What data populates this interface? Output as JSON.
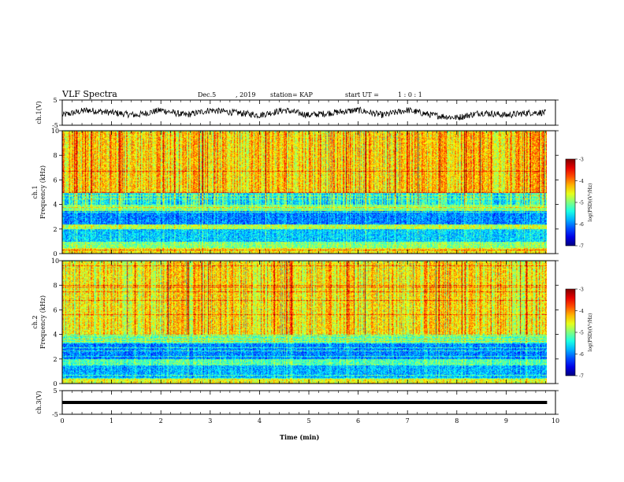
{
  "header": {
    "title": "VLF Spectra",
    "date": "Dec.5",
    "year": ", 2019",
    "station_label": "station= KAP",
    "start_label": "start  UT  =",
    "start_value": "1 : 0  : 1"
  },
  "chart_data": [
    {
      "type": "line",
      "panel": "ch1-waveform",
      "ylabel": "ch.1(V)",
      "ylim": [
        -5,
        5
      ],
      "yticks": [
        "5",
        "-5"
      ],
      "xlim": [
        0,
        10
      ],
      "description_series_color": "#000000",
      "x_min": [
        0,
        0.5,
        1,
        1.5,
        2,
        2.5,
        3,
        3.5,
        4,
        4.5,
        5,
        5.5,
        6,
        6.5,
        7,
        7.5,
        8,
        8.5,
        9,
        9.5,
        9.8
      ],
      "y_v": [
        -1,
        1,
        0,
        -1,
        1,
        -1,
        1,
        0,
        -1,
        1,
        -1,
        0,
        1,
        -1,
        1,
        -1,
        -2,
        0,
        -1,
        0,
        0
      ]
    },
    {
      "type": "heatmap",
      "panel": "ch1-spectrogram",
      "ylabel_top": "ch.1",
      "ylabel": "Frequency  (kHz)",
      "ylim": [
        0,
        10
      ],
      "yticks": [
        "0",
        "2",
        "4",
        "6",
        "8",
        "10"
      ],
      "xlim": [
        0,
        9.83
      ],
      "colorbar": {
        "label": "log(PSD)(V²/Hz)",
        "range": [
          -7,
          -3
        ],
        "ticks": [
          "-3",
          "-4",
          "-5",
          "-6",
          "-7"
        ]
      },
      "bands_khz": [
        {
          "from": 0.0,
          "to": 0.5,
          "level": -4.5
        },
        {
          "from": 0.5,
          "to": 1.0,
          "level": -5.0
        },
        {
          "from": 1.0,
          "to": 2.0,
          "level": -5.7
        },
        {
          "from": 2.0,
          "to": 2.4,
          "level": -4.8
        },
        {
          "from": 2.4,
          "to": 3.5,
          "level": -6.0
        },
        {
          "from": 3.5,
          "to": 4.0,
          "level": -5.0
        },
        {
          "from": 4.0,
          "to": 5.0,
          "level": -5.5
        },
        {
          "from": 5.0,
          "to": 10.0,
          "level": -4.4
        }
      ]
    },
    {
      "type": "heatmap",
      "panel": "ch2-spectrogram",
      "ylabel_top": "ch.2",
      "ylabel": "Frequency  (kHz)",
      "ylim": [
        0,
        10
      ],
      "yticks": [
        "0",
        "2",
        "4",
        "6",
        "8",
        "10"
      ],
      "xlim": [
        0,
        9.83
      ],
      "colorbar": {
        "label": "log(PSD)(V²/Hz)",
        "range": [
          -7,
          -3
        ],
        "ticks": [
          "-3",
          "-4",
          "-5",
          "-6",
          "-7"
        ]
      },
      "bands_khz": [
        {
          "from": 0.0,
          "to": 0.4,
          "level": -4.6
        },
        {
          "from": 0.4,
          "to": 1.5,
          "level": -5.8
        },
        {
          "from": 1.5,
          "to": 2.0,
          "level": -5.2
        },
        {
          "from": 2.0,
          "to": 3.3,
          "level": -6.0
        },
        {
          "from": 3.3,
          "to": 4.0,
          "level": -5.2
        },
        {
          "from": 4.0,
          "to": 10.0,
          "level": -4.5
        }
      ]
    },
    {
      "type": "line",
      "panel": "ch3-waveform",
      "ylabel": "ch.3(V)",
      "ylim": [
        -5,
        5
      ],
      "yticks": [
        "5",
        "-5"
      ],
      "xlim": [
        0,
        10
      ],
      "x_min": [
        0,
        9.83
      ],
      "y_v": [
        0,
        0
      ]
    }
  ],
  "xaxis": {
    "label": "Time  (min)",
    "ticks": [
      "0",
      "1",
      "2",
      "3",
      "4",
      "5",
      "6",
      "7",
      "8",
      "9",
      "10"
    ]
  }
}
